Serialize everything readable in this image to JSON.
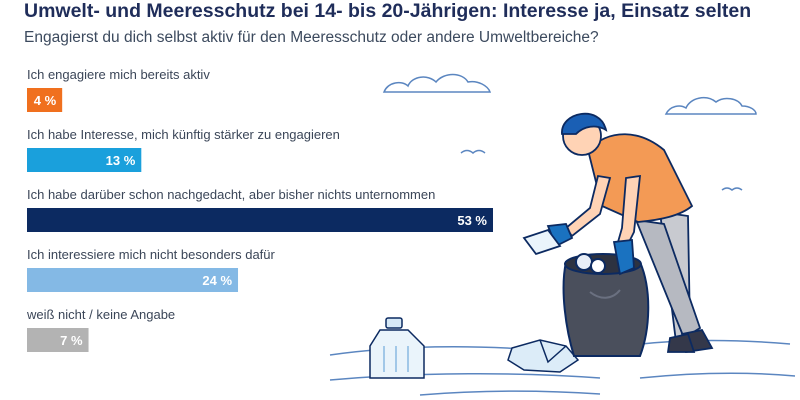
{
  "chart_data": {
    "type": "bar",
    "orientation": "horizontal",
    "title": "Umwelt- und Meeresschutz bei 14- bis 20-Jährigen: Interesse ja, Einsatz selten",
    "subtitle": "Engagierst du dich selbst aktiv für den Meeresschutz oder andere Umweltbereiche?",
    "categories": [
      "Ich engagiere mich bereits aktiv",
      "Ich habe Interesse, mich künftig stärker zu engagieren",
      "Ich habe darüber schon nachgedacht, aber bisher nichts unternommen",
      "Ich interessiere mich nicht besonders dafür",
      "weiß nicht / keine Angabe"
    ],
    "values": [
      4,
      13,
      53,
      24,
      7
    ],
    "value_labels": [
      "4 %",
      "13 %",
      "53 %",
      "24 %",
      "7 %"
    ],
    "colors": [
      "#f0701e",
      "#1aa0dc",
      "#0c2a61",
      "#84b9e5",
      "#b3b3b3"
    ],
    "unit": "%",
    "xlim": [
      0,
      53
    ],
    "xlabel": "",
    "ylabel": "",
    "grid": false
  }
}
